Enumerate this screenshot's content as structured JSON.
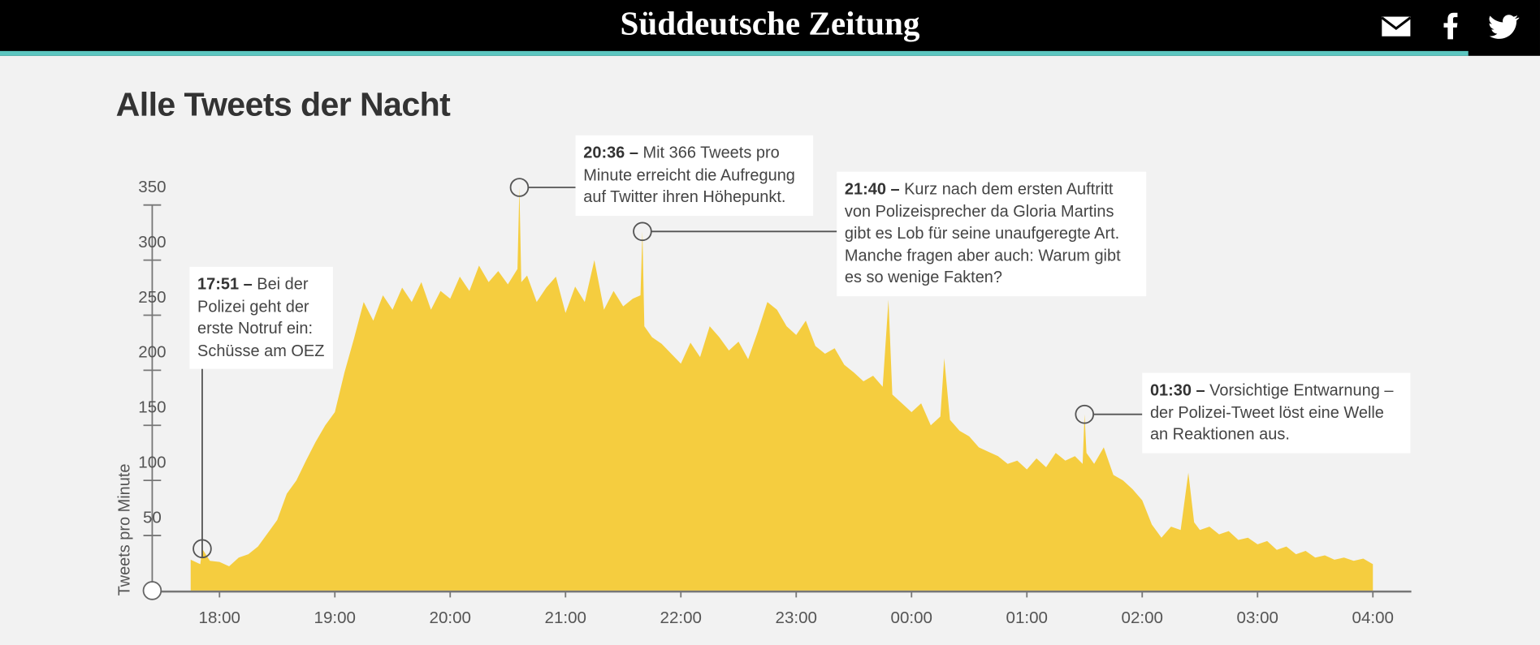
{
  "header": {
    "logo": "Süddeutsche Zeitung"
  },
  "chart_data": {
    "type": "area",
    "title": "Alle Tweets der Nacht",
    "y_label": "Tweets pro Minute",
    "color": "#f5cd3f",
    "xlim": [
      "17:25",
      "04:20"
    ],
    "xticks": [
      "18:00",
      "19:00",
      "20:00",
      "21:00",
      "22:00",
      "23:00",
      "00:00",
      "01:00",
      "02:00",
      "03:00",
      "04:00"
    ],
    "ylim": [
      0,
      350
    ],
    "yticks": [
      50,
      100,
      150,
      200,
      250,
      300,
      350
    ],
    "x": [
      "17:45",
      "17:50",
      "17:51",
      "17:55",
      "18:00",
      "18:05",
      "18:10",
      "18:15",
      "18:20",
      "18:25",
      "18:30",
      "18:35",
      "18:40",
      "18:45",
      "18:50",
      "18:55",
      "19:00",
      "19:05",
      "19:10",
      "19:15",
      "19:20",
      "19:25",
      "19:30",
      "19:35",
      "19:40",
      "19:45",
      "19:50",
      "19:55",
      "20:00",
      "20:05",
      "20:10",
      "20:15",
      "20:20",
      "20:25",
      "20:30",
      "20:35",
      "20:36",
      "20:37",
      "20:40",
      "20:45",
      "20:50",
      "20:55",
      "21:00",
      "21:05",
      "21:10",
      "21:15",
      "21:20",
      "21:25",
      "21:30",
      "21:35",
      "21:39",
      "21:40",
      "21:41",
      "21:45",
      "21:50",
      "21:55",
      "22:00",
      "22:05",
      "22:10",
      "22:15",
      "22:20",
      "22:25",
      "22:30",
      "22:35",
      "22:40",
      "22:45",
      "22:50",
      "22:55",
      "23:00",
      "23:05",
      "23:10",
      "23:15",
      "23:20",
      "23:25",
      "23:30",
      "23:35",
      "23:40",
      "23:45",
      "23:48",
      "23:50",
      "23:55",
      "00:00",
      "00:05",
      "00:10",
      "00:15",
      "00:17",
      "00:20",
      "00:25",
      "00:30",
      "00:35",
      "00:40",
      "00:45",
      "00:50",
      "00:55",
      "01:00",
      "01:05",
      "01:10",
      "01:15",
      "01:20",
      "01:25",
      "01:29",
      "01:30",
      "01:31",
      "01:35",
      "01:40",
      "01:45",
      "01:50",
      "01:55",
      "02:00",
      "02:05",
      "02:10",
      "02:15",
      "02:20",
      "02:24",
      "02:27",
      "02:30",
      "02:35",
      "02:40",
      "02:45",
      "02:50",
      "02:55",
      "03:00",
      "03:05",
      "03:10",
      "03:15",
      "03:20",
      "03:25",
      "03:30",
      "03:35",
      "03:40",
      "03:45",
      "03:50",
      "03:55",
      "04:00"
    ],
    "values": [
      28,
      24,
      38,
      27,
      26,
      22,
      30,
      33,
      40,
      52,
      64,
      88,
      100,
      118,
      135,
      150,
      162,
      198,
      229,
      262,
      245,
      268,
      255,
      275,
      262,
      280,
      255,
      272,
      265,
      285,
      272,
      295,
      280,
      290,
      278,
      292,
      366,
      280,
      286,
      262,
      275,
      285,
      252,
      276,
      262,
      300,
      255,
      272,
      258,
      265,
      268,
      326,
      240,
      230,
      224,
      215,
      206,
      225,
      212,
      240,
      230,
      218,
      226,
      210,
      235,
      262,
      255,
      240,
      232,
      245,
      222,
      215,
      220,
      205,
      198,
      190,
      195,
      185,
      264,
      178,
      170,
      162,
      170,
      150,
      158,
      211,
      155,
      145,
      140,
      130,
      126,
      122,
      115,
      118,
      110,
      120,
      112,
      125,
      118,
      122,
      115,
      160,
      125,
      115,
      130,
      105,
      100,
      92,
      82,
      60,
      48,
      58,
      55,
      107,
      62,
      55,
      58,
      51,
      54,
      46,
      48,
      42,
      45,
      37,
      40,
      33,
      36,
      30,
      32,
      28,
      30,
      27,
      29,
      24
    ],
    "annotations": [
      {
        "lead": "17:51 –",
        "text": "Bei der Polizei geht der erste Notruf ein: Schüsse am OEZ"
      },
      {
        "lead": "20:36 –",
        "text": "Mit 366 Tweets pro Minute erreicht die Aufregung auf Twitter ihren Höhepunkt."
      },
      {
        "lead": "21:40 –",
        "text": "Kurz nach dem ersten Auftritt von Polizeisprecher da Gloria Martins gibt es Lob für seine unaufgeregte Art. Manche fragen aber auch: Warum gibt es so wenige Fakten?"
      },
      {
        "lead": "01:30 –",
        "text": "Vorsichtige Entwarnung – der Polizei-Tweet löst eine Welle an Reaktionen aus."
      }
    ]
  }
}
